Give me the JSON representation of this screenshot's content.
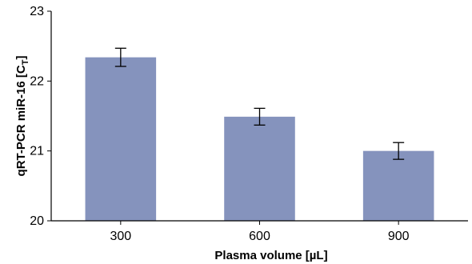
{
  "chart_data": {
    "type": "bar",
    "categories": [
      "300",
      "600",
      "900"
    ],
    "values": [
      22.34,
      21.49,
      21.0
    ],
    "error": [
      0.13,
      0.12,
      0.12
    ],
    "xlabel": "Plasma volume [µL]",
    "ylabel": "qRT-PCR miR-16 [C",
    "ylabel_subscript": "T",
    "ylabel_suffix": "]",
    "ylim": [
      20,
      23
    ],
    "yticks": [
      "20",
      "21",
      "22",
      "23"
    ],
    "grid": false,
    "bar_color": "#8593bd",
    "axis_color": "#000000"
  }
}
